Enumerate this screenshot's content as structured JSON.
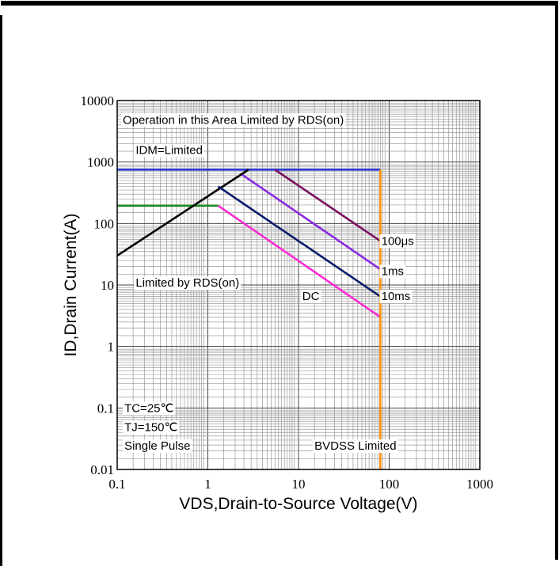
{
  "chart_data": {
    "type": "line",
    "title": "",
    "xlabel": "VDS,Drain-to-Source Voltage(V)",
    "ylabel": "ID,Drain Current(A)",
    "xscale": "log",
    "yscale": "log",
    "xlim": [
      0.1,
      1000
    ],
    "ylim": [
      0.01,
      10000
    ],
    "grid": true,
    "xticks": [
      {
        "value": 0.1,
        "label": "0.1"
      },
      {
        "value": 1,
        "label": "1"
      },
      {
        "value": 10,
        "label": "10"
      },
      {
        "value": 100,
        "label": "100"
      },
      {
        "value": 1000,
        "label": "1000"
      }
    ],
    "yticks": [
      {
        "value": 0.01,
        "label": "0.01"
      },
      {
        "value": 0.1,
        "label": "0.1"
      },
      {
        "value": 1,
        "label": "1"
      },
      {
        "value": 10,
        "label": "10"
      },
      {
        "value": 100,
        "label": "100"
      },
      {
        "value": 1000,
        "label": "1000"
      },
      {
        "value": 10000,
        "label": "10000"
      }
    ],
    "series": [
      {
        "color": "#1f2fd6",
        "x": [
          0.1,
          80
        ],
        "y": [
          750,
          750
        ]
      },
      {
        "color": "#1a8a1a",
        "x": [
          0.1,
          1.3
        ],
        "y": [
          195,
          195
        ]
      },
      {
        "color": "#000000",
        "x": [
          0.1,
          2.8
        ],
        "y": [
          30,
          750
        ]
      },
      {
        "color": "#7a1060",
        "x": [
          5.5,
          80
        ],
        "y": [
          750,
          52
        ]
      },
      {
        "color": "#8a2be2",
        "x": [
          2.4,
          80
        ],
        "y": [
          620,
          18
        ]
      },
      {
        "color": "#0a1a6a",
        "x": [
          1.3,
          80
        ],
        "y": [
          400,
          6.5
        ]
      },
      {
        "color": "#ff2ad4",
        "x": [
          1.3,
          80
        ],
        "y": [
          195,
          3
        ]
      },
      {
        "color": "#ff8c00",
        "x": [
          80,
          80
        ],
        "y": [
          0.01,
          750
        ]
      }
    ],
    "annotations": [
      {
        "text": "Operation in this Area Limited by RDS(on)",
        "x": 0.115,
        "y": 4200
      },
      {
        "text": "IDM=Limited",
        "x": 0.16,
        "y": 1350
      },
      {
        "text": "100μs",
        "x": 82,
        "y": 45
      },
      {
        "text": "1ms",
        "x": 82,
        "y": 14.5
      },
      {
        "text": "10ms",
        "x": 82,
        "y": 5.7
      },
      {
        "text": "Limited by RDS(on)",
        "x": 0.16,
        "y": 9.4
      },
      {
        "text": "DC",
        "x": 11,
        "y": 5.7
      },
      {
        "text": "TC=25℃",
        "x": 0.12,
        "y": 0.086
      },
      {
        "text": "TJ=150℃",
        "x": 0.12,
        "y": 0.042
      },
      {
        "text": "Single Pulse",
        "x": 0.12,
        "y": 0.021
      },
      {
        "text": "BVDSS Limited",
        "x": 15,
        "y": 0.021
      }
    ]
  }
}
